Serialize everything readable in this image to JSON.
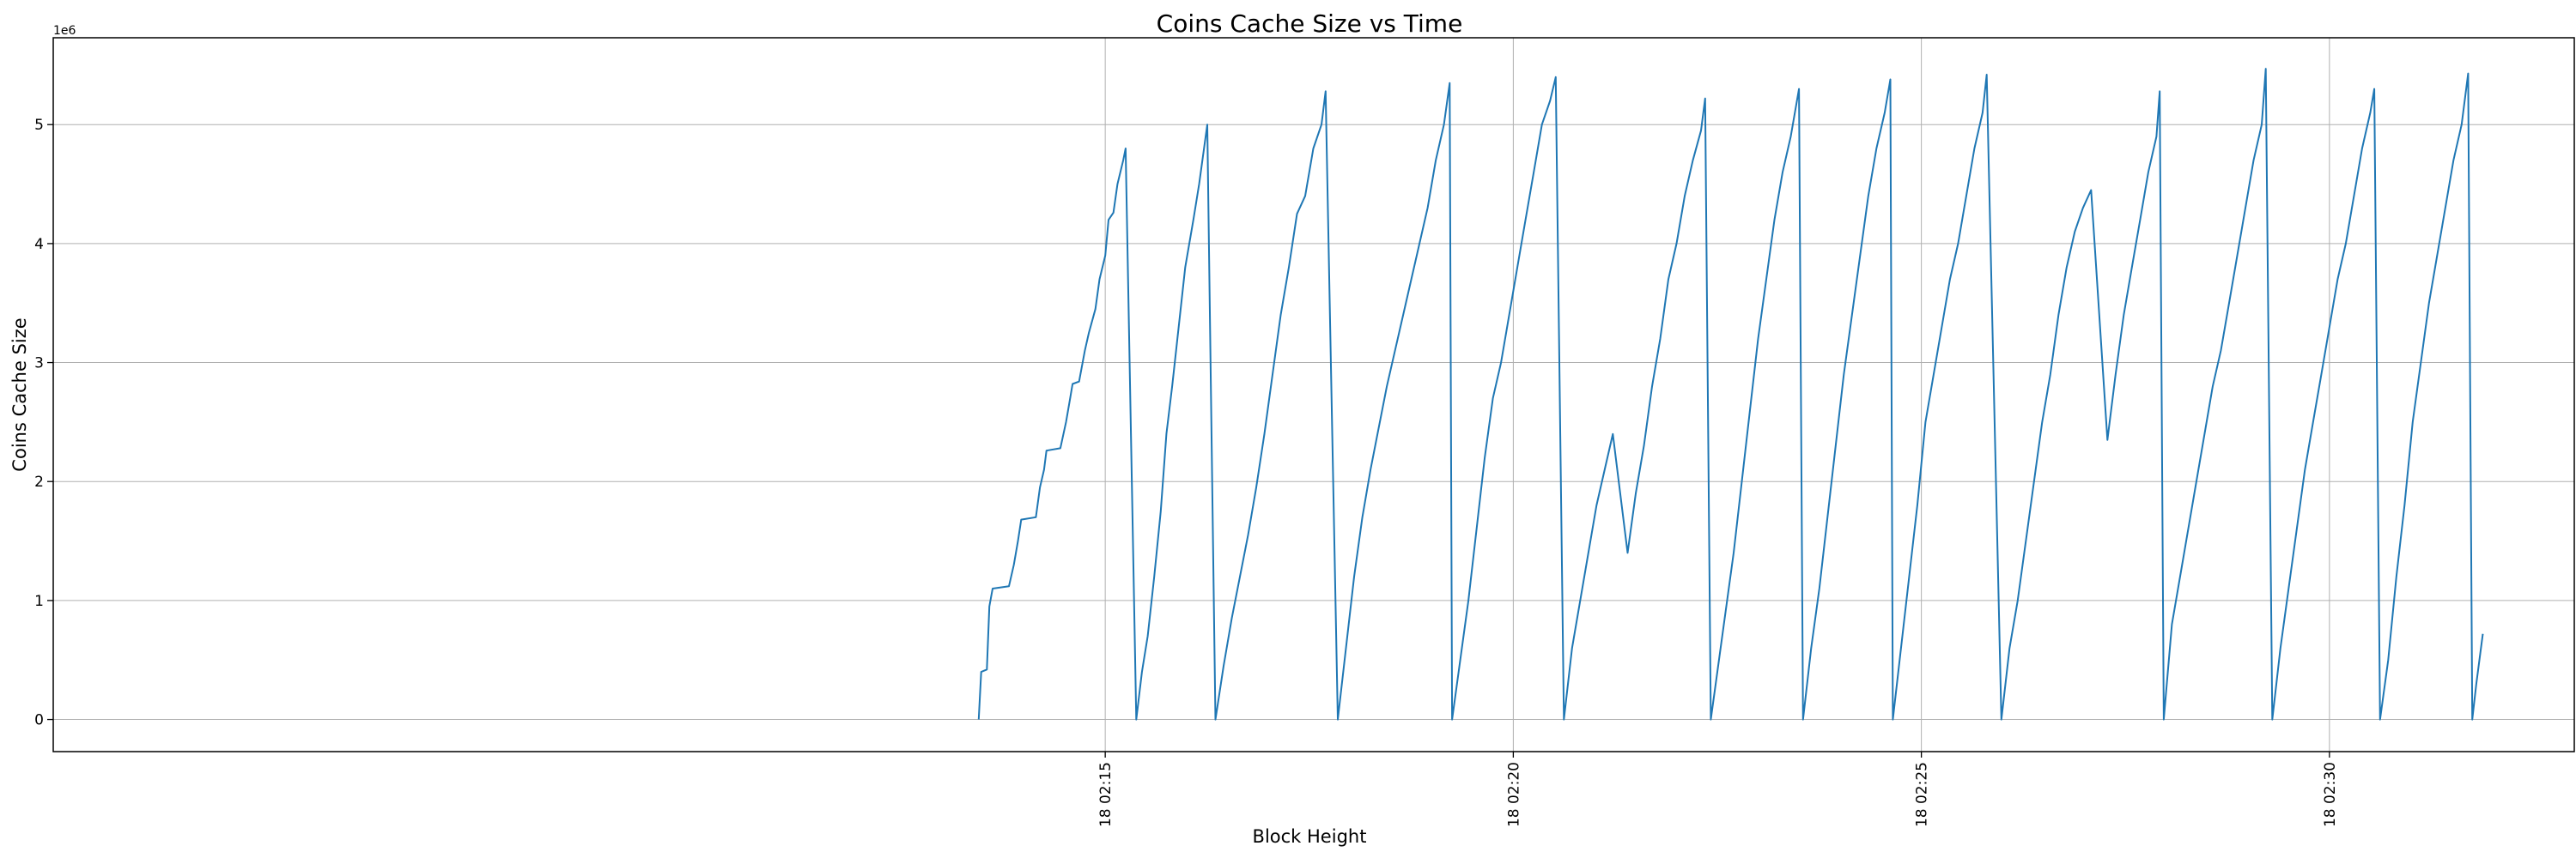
{
  "chart_data": {
    "type": "line",
    "title": "Coins Cache Size vs Time",
    "xlabel": "Block Height",
    "ylabel": "Coins Cache Size",
    "y_offset_label": "1e6",
    "x_unit": "minutes",
    "xlim": [
      2.11,
      33.0
    ],
    "ylim": [
      -0.27,
      5.73
    ],
    "x_ticks": [
      {
        "value": 15,
        "label": "18 02:15"
      },
      {
        "value": 20,
        "label": "18 02:20"
      },
      {
        "value": 25,
        "label": "18 02:25"
      },
      {
        "value": 30,
        "label": "18 02:30"
      }
    ],
    "y_ticks": [
      {
        "value": 0,
        "label": "0"
      },
      {
        "value": 1,
        "label": "1"
      },
      {
        "value": 2,
        "label": "2"
      },
      {
        "value": 3,
        "label": "3"
      },
      {
        "value": 4,
        "label": "4"
      },
      {
        "value": 5,
        "label": "5"
      }
    ],
    "grid": true,
    "line_color": "#1f77b4",
    "series": [
      {
        "name": "",
        "points": [
          [
            13.45,
            0.0
          ],
          [
            13.48,
            0.4
          ],
          [
            13.55,
            0.42
          ],
          [
            13.58,
            0.95
          ],
          [
            13.62,
            1.1
          ],
          [
            13.82,
            1.12
          ],
          [
            13.88,
            1.3
          ],
          [
            13.93,
            1.5
          ],
          [
            13.97,
            1.68
          ],
          [
            14.15,
            1.7
          ],
          [
            14.2,
            1.95
          ],
          [
            14.25,
            2.1
          ],
          [
            14.28,
            2.26
          ],
          [
            14.45,
            2.28
          ],
          [
            14.52,
            2.5
          ],
          [
            14.57,
            2.7
          ],
          [
            14.6,
            2.82
          ],
          [
            14.68,
            2.84
          ],
          [
            14.75,
            3.1
          ],
          [
            14.8,
            3.25
          ],
          [
            14.88,
            3.45
          ],
          [
            14.93,
            3.7
          ],
          [
            15.0,
            3.9
          ],
          [
            15.04,
            4.2
          ],
          [
            15.1,
            4.26
          ],
          [
            15.15,
            4.5
          ],
          [
            15.22,
            4.7
          ],
          [
            15.25,
            4.8
          ],
          [
            15.38,
            0.0
          ],
          [
            15.45,
            0.4
          ],
          [
            15.52,
            0.7
          ],
          [
            15.6,
            1.2
          ],
          [
            15.68,
            1.75
          ],
          [
            15.75,
            2.4
          ],
          [
            15.82,
            2.8
          ],
          [
            15.9,
            3.3
          ],
          [
            15.98,
            3.8
          ],
          [
            16.08,
            4.2
          ],
          [
            16.15,
            4.5
          ],
          [
            16.25,
            5.0
          ],
          [
            16.35,
            0.0
          ],
          [
            16.45,
            0.45
          ],
          [
            16.55,
            0.85
          ],
          [
            16.65,
            1.2
          ],
          [
            16.75,
            1.55
          ],
          [
            16.85,
            1.95
          ],
          [
            16.95,
            2.4
          ],
          [
            17.05,
            2.9
          ],
          [
            17.15,
            3.4
          ],
          [
            17.25,
            3.8
          ],
          [
            17.35,
            4.25
          ],
          [
            17.45,
            4.4
          ],
          [
            17.55,
            4.8
          ],
          [
            17.65,
            5.0
          ],
          [
            17.7,
            5.28
          ],
          [
            17.85,
            0.0
          ],
          [
            17.95,
            0.6
          ],
          [
            18.05,
            1.2
          ],
          [
            18.15,
            1.7
          ],
          [
            18.25,
            2.1
          ],
          [
            18.35,
            2.45
          ],
          [
            18.45,
            2.8
          ],
          [
            18.55,
            3.1
          ],
          [
            18.65,
            3.4
          ],
          [
            18.75,
            3.7
          ],
          [
            18.85,
            4.0
          ],
          [
            18.95,
            4.3
          ],
          [
            19.05,
            4.7
          ],
          [
            19.15,
            5.0
          ],
          [
            19.22,
            5.35
          ],
          [
            19.25,
            0.0
          ],
          [
            19.35,
            0.5
          ],
          [
            19.45,
            1.0
          ],
          [
            19.55,
            1.6
          ],
          [
            19.65,
            2.2
          ],
          [
            19.75,
            2.7
          ],
          [
            19.85,
            3.0
          ],
          [
            19.95,
            3.4
          ],
          [
            20.05,
            3.8
          ],
          [
            20.15,
            4.2
          ],
          [
            20.25,
            4.6
          ],
          [
            20.35,
            5.0
          ],
          [
            20.45,
            5.2
          ],
          [
            20.52,
            5.4
          ],
          [
            20.62,
            0.0
          ],
          [
            20.72,
            0.6
          ],
          [
            20.82,
            1.0
          ],
          [
            20.92,
            1.4
          ],
          [
            21.02,
            1.8
          ],
          [
            21.12,
            2.1
          ],
          [
            21.22,
            2.4
          ],
          [
            21.4,
            1.4
          ],
          [
            21.5,
            1.9
          ],
          [
            21.6,
            2.3
          ],
          [
            21.7,
            2.8
          ],
          [
            21.8,
            3.2
          ],
          [
            21.9,
            3.7
          ],
          [
            22.0,
            4.0
          ],
          [
            22.1,
            4.4
          ],
          [
            22.2,
            4.7
          ],
          [
            22.3,
            4.95
          ],
          [
            22.35,
            5.22
          ],
          [
            22.42,
            0.0
          ],
          [
            22.5,
            0.4
          ],
          [
            22.6,
            0.9
          ],
          [
            22.7,
            1.4
          ],
          [
            22.8,
            2.0
          ],
          [
            22.9,
            2.6
          ],
          [
            23.0,
            3.2
          ],
          [
            23.1,
            3.7
          ],
          [
            23.2,
            4.2
          ],
          [
            23.3,
            4.6
          ],
          [
            23.4,
            4.9
          ],
          [
            23.5,
            5.3
          ],
          [
            23.55,
            0.0
          ],
          [
            23.65,
            0.6
          ],
          [
            23.75,
            1.1
          ],
          [
            23.85,
            1.7
          ],
          [
            23.95,
            2.3
          ],
          [
            24.05,
            2.9
          ],
          [
            24.15,
            3.4
          ],
          [
            24.25,
            3.9
          ],
          [
            24.35,
            4.4
          ],
          [
            24.45,
            4.8
          ],
          [
            24.55,
            5.1
          ],
          [
            24.62,
            5.38
          ],
          [
            24.65,
            0.0
          ],
          [
            24.75,
            0.6
          ],
          [
            24.85,
            1.2
          ],
          [
            24.95,
            1.8
          ],
          [
            25.05,
            2.5
          ],
          [
            25.15,
            2.9
          ],
          [
            25.25,
            3.3
          ],
          [
            25.35,
            3.7
          ],
          [
            25.45,
            4.0
          ],
          [
            25.55,
            4.4
          ],
          [
            25.65,
            4.8
          ],
          [
            25.75,
            5.1
          ],
          [
            25.8,
            5.42
          ],
          [
            25.98,
            0.0
          ],
          [
            26.08,
            0.6
          ],
          [
            26.18,
            1.0
          ],
          [
            26.28,
            1.5
          ],
          [
            26.38,
            2.0
          ],
          [
            26.48,
            2.5
          ],
          [
            26.58,
            2.9
          ],
          [
            26.68,
            3.4
          ],
          [
            26.78,
            3.8
          ],
          [
            26.88,
            4.1
          ],
          [
            26.98,
            4.3
          ],
          [
            27.08,
            4.45
          ],
          [
            27.28,
            2.35
          ],
          [
            27.38,
            2.9
          ],
          [
            27.48,
            3.4
          ],
          [
            27.58,
            3.8
          ],
          [
            27.68,
            4.2
          ],
          [
            27.78,
            4.6
          ],
          [
            27.88,
            4.9
          ],
          [
            27.92,
            5.28
          ],
          [
            27.97,
            0.0
          ],
          [
            28.07,
            0.8
          ],
          [
            28.17,
            1.2
          ],
          [
            28.27,
            1.6
          ],
          [
            28.37,
            2.0
          ],
          [
            28.47,
            2.4
          ],
          [
            28.57,
            2.8
          ],
          [
            28.67,
            3.1
          ],
          [
            28.77,
            3.5
          ],
          [
            28.87,
            3.9
          ],
          [
            28.97,
            4.3
          ],
          [
            29.07,
            4.7
          ],
          [
            29.17,
            5.0
          ],
          [
            29.22,
            5.47
          ],
          [
            29.3,
            0.0
          ],
          [
            29.4,
            0.6
          ],
          [
            29.5,
            1.1
          ],
          [
            29.6,
            1.6
          ],
          [
            29.7,
            2.1
          ],
          [
            29.8,
            2.5
          ],
          [
            29.9,
            2.9
          ],
          [
            30.0,
            3.3
          ],
          [
            30.1,
            3.7
          ],
          [
            30.2,
            4.0
          ],
          [
            30.3,
            4.4
          ],
          [
            30.4,
            4.8
          ],
          [
            30.5,
            5.1
          ],
          [
            30.55,
            5.3
          ],
          [
            30.62,
            0.0
          ],
          [
            30.72,
            0.5
          ],
          [
            30.82,
            1.2
          ],
          [
            30.92,
            1.8
          ],
          [
            31.02,
            2.5
          ],
          [
            31.12,
            3.0
          ],
          [
            31.22,
            3.5
          ],
          [
            31.32,
            3.9
          ],
          [
            31.42,
            4.3
          ],
          [
            31.52,
            4.7
          ],
          [
            31.62,
            5.0
          ],
          [
            31.7,
            5.43
          ],
          [
            31.75,
            0.0
          ],
          [
            31.8,
            0.3
          ],
          [
            31.88,
            0.72
          ]
        ]
      }
    ]
  }
}
